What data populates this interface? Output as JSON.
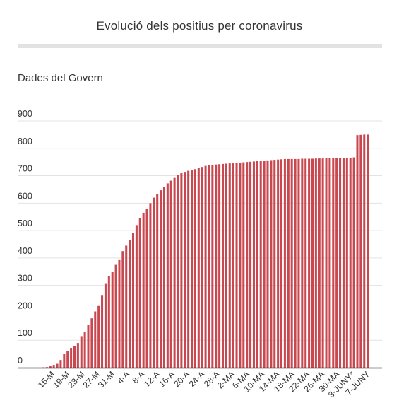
{
  "page": {
    "title": "Evolució dels positius per coronavirus",
    "subtitle": "Dades del Govern"
  },
  "chart_data": {
    "type": "bar",
    "title": "Evolució dels positius per coronavirus",
    "subtitle": "Dades del Govern",
    "xlabel": "",
    "ylabel": "",
    "ylim": [
      0,
      900
    ],
    "yticks": [
      0,
      100,
      200,
      300,
      400,
      500,
      600,
      700,
      800,
      900
    ],
    "grid": true,
    "bar_color": "#c9474f",
    "x_tick_labels": [
      "15-M",
      "19-M",
      "23-M",
      "27-M",
      "31-M",
      "4-A",
      "8-A",
      "12-A",
      "16-A",
      "20-A",
      "24-A",
      "28-A",
      "2-MA",
      "6-MA",
      "10-MA",
      "14-MA",
      "18-MA",
      "22-MA",
      "26-MA",
      "30-MA",
      "3-JUNY*",
      "7-JUNY"
    ],
    "series": [
      {
        "values": [
          1,
          2,
          5,
          10,
          14,
          28,
          50,
          60,
          72,
          80,
          90,
          115,
          130,
          155,
          180,
          205,
          225,
          265,
          308,
          335,
          350,
          375,
          395,
          425,
          445,
          465,
          490,
          520,
          545,
          565,
          580,
          600,
          620,
          633,
          647,
          660,
          672,
          682,
          692,
          702,
          710,
          714,
          718,
          720,
          724,
          728,
          732,
          736,
          738,
          740,
          741,
          742,
          743,
          744,
          745,
          746,
          747,
          748,
          749,
          750,
          751,
          752,
          753,
          754,
          755,
          756,
          757,
          758,
          759,
          760,
          761,
          761,
          761,
          761,
          761,
          762,
          762,
          762,
          762,
          763,
          763,
          763,
          764,
          764,
          764,
          765,
          765,
          765,
          765,
          766,
          767,
          848,
          849,
          850,
          850
        ]
      }
    ]
  }
}
